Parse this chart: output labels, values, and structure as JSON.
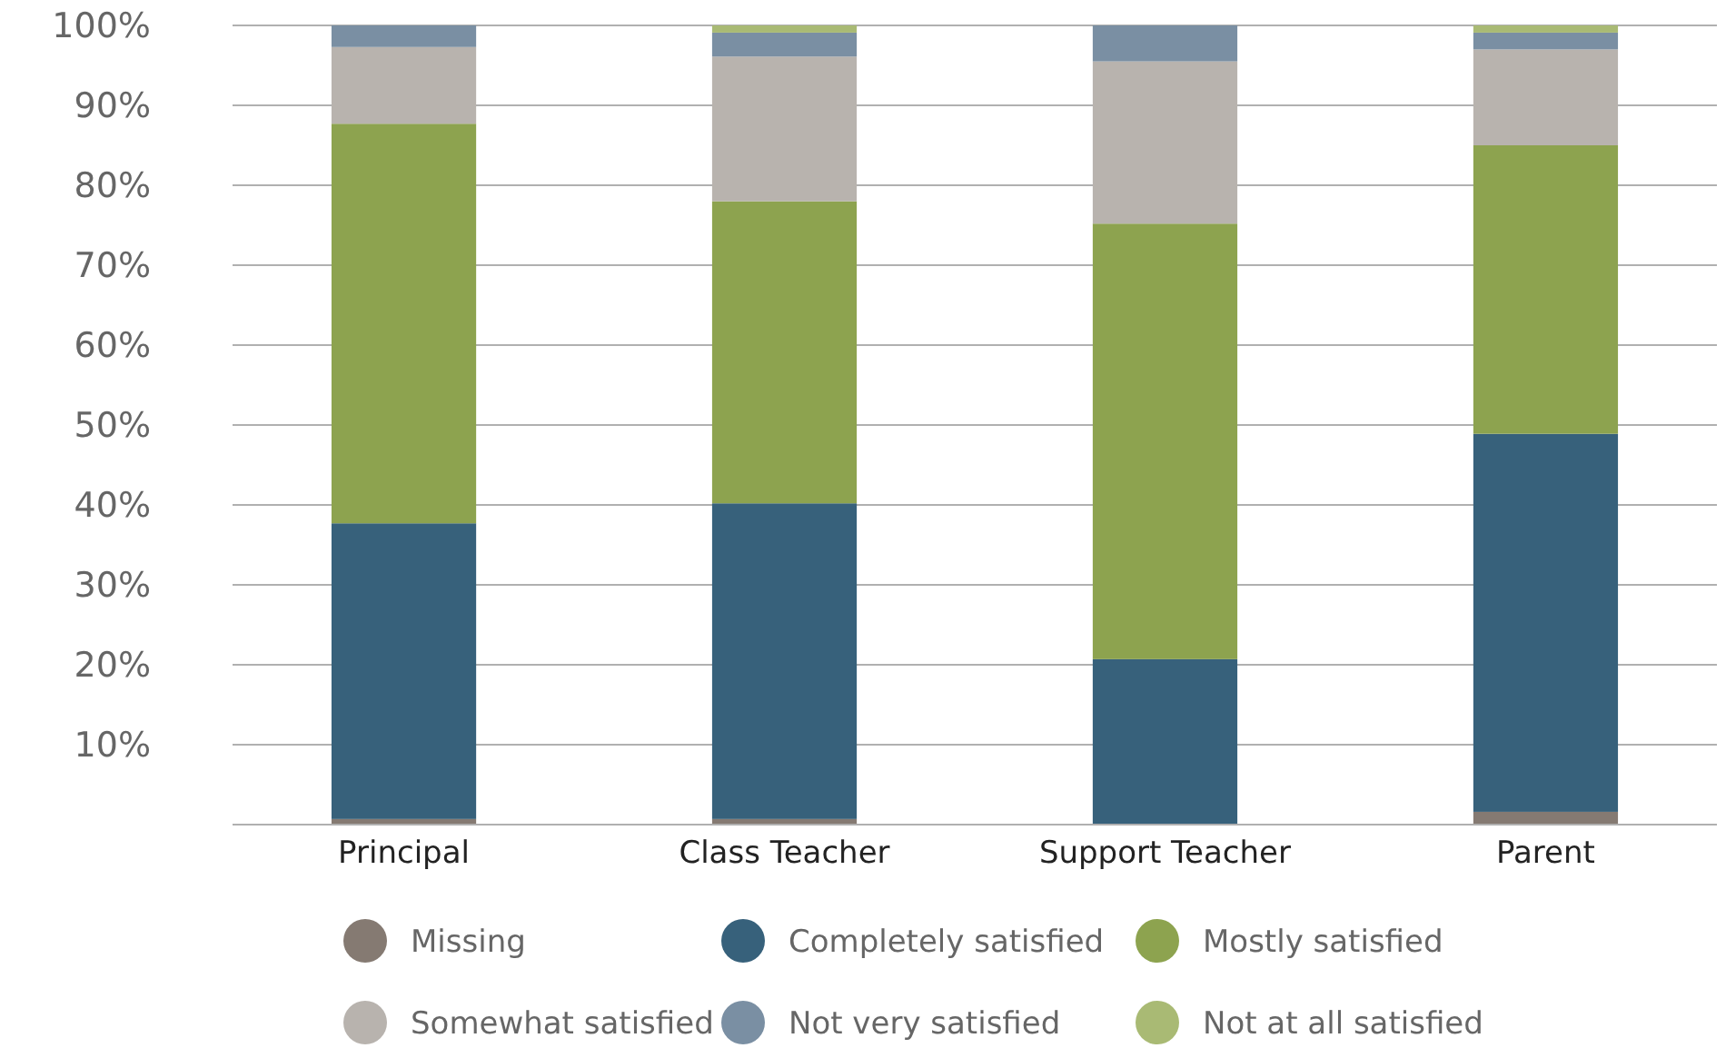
{
  "chart_data": {
    "type": "bar",
    "stacked": true,
    "categories": [
      "Principal",
      "Class Teacher",
      "Support Teacher",
      "Parent"
    ],
    "series": [
      {
        "name": "Missing",
        "color": "#857a72",
        "values": [
          0.7,
          0.7,
          0,
          1.6
        ]
      },
      {
        "name": "Completely satisfied",
        "color": "#37617b",
        "values": [
          37.0,
          39.5,
          20.7,
          47.3
        ]
      },
      {
        "name": "Mostly satisfied",
        "color": "#8da34f",
        "values": [
          50.0,
          37.8,
          54.5,
          36.1
        ]
      },
      {
        "name": "Somewhat satisfied",
        "color": "#b8b3ae",
        "values": [
          9.6,
          18.1,
          20.3,
          12.0
        ]
      },
      {
        "name": "Not very satisfied",
        "color": "#7a8fa3",
        "values": [
          2.7,
          3.0,
          4.5,
          2.1
        ]
      },
      {
        "name": "Not at all satisfied",
        "color": "#a9ba74",
        "values": [
          0,
          0.9,
          0,
          0.9
        ]
      }
    ],
    "ylim": [
      0,
      100
    ],
    "yticks": [
      {
        "value": 0,
        "label": null
      },
      {
        "value": 10,
        "label": "10%"
      },
      {
        "value": 20,
        "label": "20%"
      },
      {
        "value": 30,
        "label": "30%"
      },
      {
        "value": 40,
        "label": "40%"
      },
      {
        "value": 50,
        "label": "50%"
      },
      {
        "value": 60,
        "label": "60%"
      },
      {
        "value": 70,
        "label": "70%"
      },
      {
        "value": 80,
        "label": "80%"
      },
      {
        "value": 90,
        "label": "90%"
      },
      {
        "value": 100,
        "label": "100%"
      }
    ],
    "grid": "y",
    "legend": "bottom"
  }
}
